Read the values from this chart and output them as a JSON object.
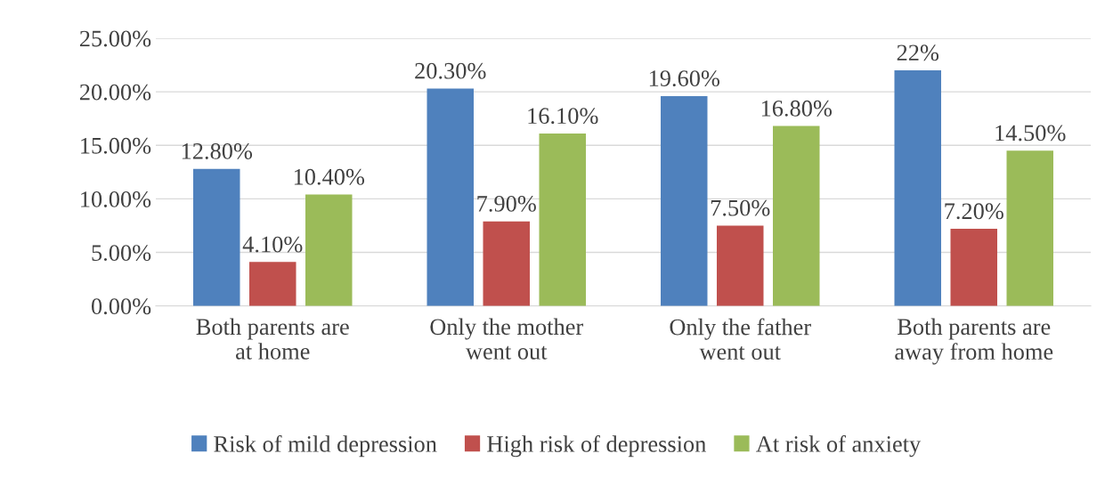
{
  "chart_data": {
    "type": "bar",
    "categories": [
      "Both parents are\nat home",
      "Only the mother\nwent out",
      "Only the father\nwent out",
      "Both parents are\naway from home"
    ],
    "series": [
      {
        "name": "Risk of mild depression",
        "color": "#4f81bd",
        "values": [
          12.8,
          20.3,
          19.6,
          22
        ],
        "value_labels": [
          "12.80%",
          "20.30%",
          "19.60%",
          "22%"
        ]
      },
      {
        "name": "High risk of depression",
        "color": "#c0504d",
        "values": [
          4.1,
          7.9,
          7.5,
          7.2
        ],
        "value_labels": [
          "4.10%",
          "7.90%",
          "7.50%",
          "7.20%"
        ]
      },
      {
        "name": "At risk of anxiety",
        "color": "#9bbb59",
        "values": [
          10.4,
          16.1,
          16.8,
          14.5
        ],
        "value_labels": [
          "10.40%",
          "16.10%",
          "16.80%",
          "14.50%"
        ]
      }
    ],
    "ylim": [
      0,
      25
    ],
    "yticks": [
      {
        "value": 0,
        "label": "0.00%"
      },
      {
        "value": 5,
        "label": "5.00%"
      },
      {
        "value": 10,
        "label": "10.00%"
      },
      {
        "value": 15,
        "label": "15.00%"
      },
      {
        "value": 20,
        "label": "20.00%"
      },
      {
        "value": 25,
        "label": "25.00%"
      }
    ],
    "grid": "y",
    "legend": "bottom"
  }
}
